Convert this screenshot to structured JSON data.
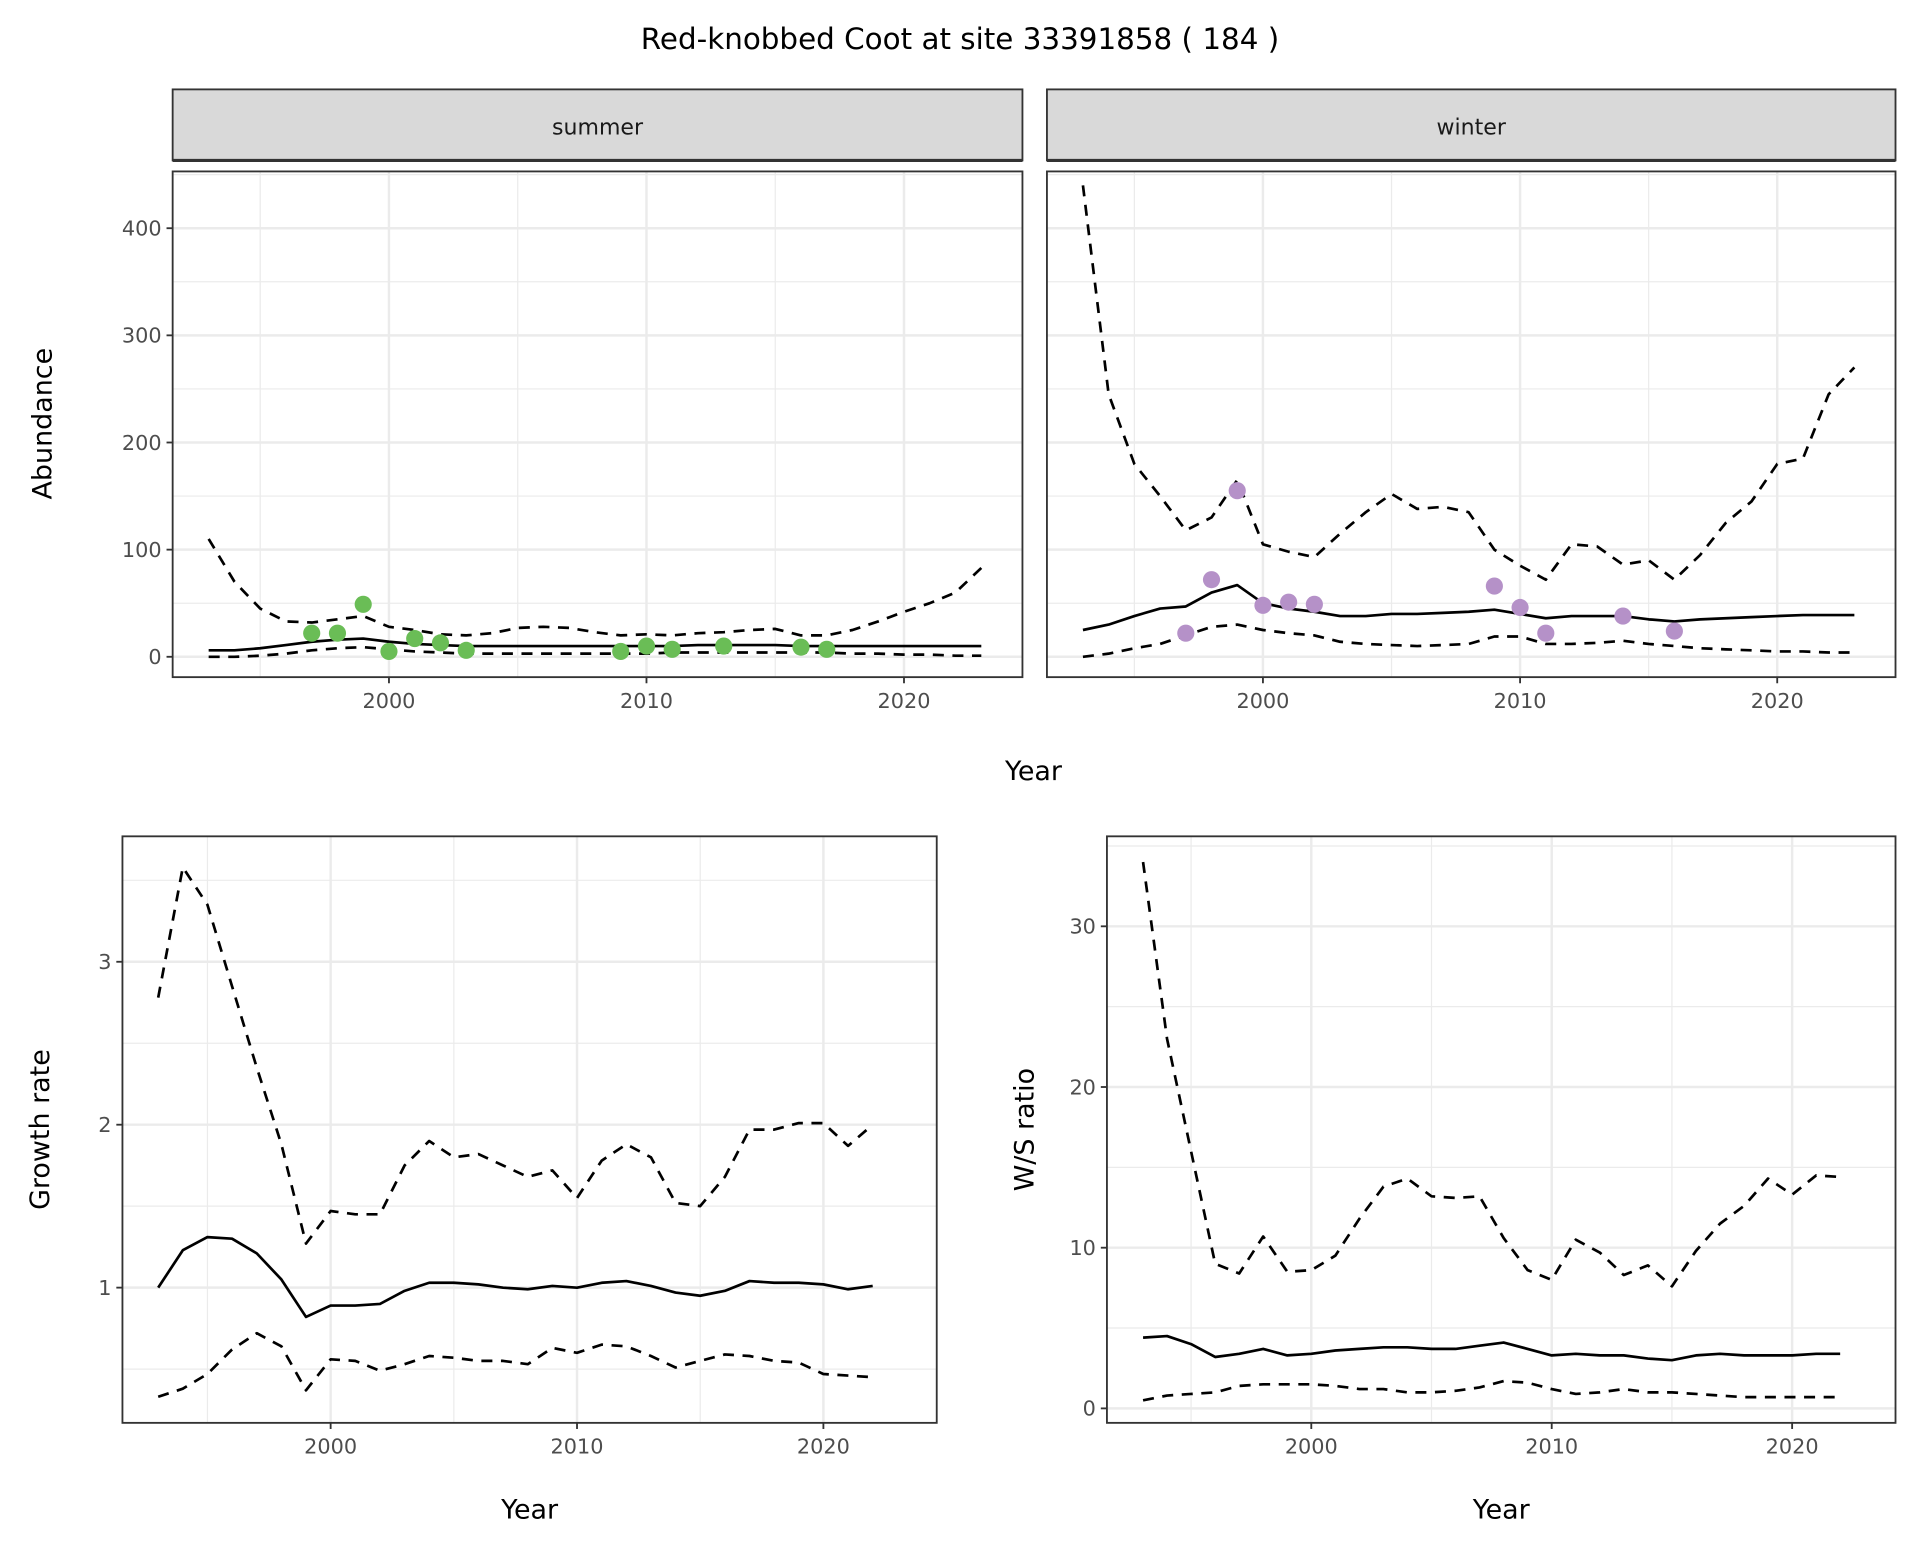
{
  "title": "Red-knobbed Coot at site 33391858 ( 184 )",
  "colors": {
    "summer_points": "#6abd56",
    "winter_points": "#b591c8",
    "strip_bg": "#d9d9d9",
    "grid": "#ebebeb"
  },
  "chart_data": [
    {
      "type": "line",
      "panel": "summer",
      "strip_label": "summer",
      "xlabel": "Year",
      "ylabel": "Abundance",
      "xlim": [
        1991.6,
        2024.6
      ],
      "ylim": [
        -19,
        453
      ],
      "x_ticks": [
        2000,
        2010,
        2020
      ],
      "y_ticks": [
        0,
        100,
        200,
        300,
        400
      ],
      "grid": true,
      "x": [
        1993,
        1994,
        1995,
        1996,
        1997,
        1998,
        1999,
        2000,
        2001,
        2002,
        2003,
        2004,
        2005,
        2006,
        2007,
        2008,
        2009,
        2010,
        2011,
        2012,
        2013,
        2014,
        2015,
        2016,
        2017,
        2018,
        2019,
        2020,
        2021,
        2022,
        2023
      ],
      "series": [
        {
          "style": "solid",
          "values": [
            6,
            6,
            8,
            11,
            14,
            16,
            17,
            14,
            12,
            11,
            10,
            10,
            10,
            10,
            10,
            10,
            10,
            10,
            10,
            11,
            11,
            11,
            11,
            10,
            10,
            10,
            10,
            10,
            10,
            10,
            10
          ]
        },
        {
          "style": "dashed",
          "values": [
            110,
            70,
            45,
            33,
            32,
            35,
            38,
            28,
            25,
            21,
            20,
            22,
            27,
            28,
            27,
            23,
            20,
            21,
            20,
            22,
            23,
            25,
            26,
            20,
            20,
            25,
            33,
            42,
            50,
            60,
            83
          ]
        },
        {
          "style": "dashed",
          "values": [
            0,
            0,
            1,
            3,
            6,
            8,
            9,
            7,
            5,
            4,
            3,
            3,
            3,
            3,
            3,
            3,
            3,
            3,
            4,
            4,
            4,
            4,
            4,
            4,
            4,
            3,
            3,
            2,
            2,
            1,
            1
          ]
        }
      ],
      "points": {
        "x": [
          1997,
          1998,
          1999,
          2000,
          2001,
          2002,
          2003,
          2009,
          2010,
          2011,
          2013,
          2016,
          2017
        ],
        "y": [
          22,
          22,
          49,
          5,
          17,
          13,
          6,
          5,
          10,
          7,
          10,
          9,
          7
        ]
      }
    },
    {
      "type": "line",
      "panel": "winter",
      "strip_label": "winter",
      "xlabel": "Year",
      "ylabel": "Abundance",
      "xlim": [
        1991.6,
        2024.6
      ],
      "ylim": [
        -19,
        453
      ],
      "x_ticks": [
        2000,
        2010,
        2020
      ],
      "y_ticks": [
        0,
        100,
        200,
        300,
        400
      ],
      "grid": true,
      "x": [
        1993,
        1994,
        1995,
        1996,
        1997,
        1998,
        1999,
        2000,
        2001,
        2002,
        2003,
        2004,
        2005,
        2006,
        2007,
        2008,
        2009,
        2010,
        2011,
        2012,
        2013,
        2014,
        2015,
        2016,
        2017,
        2018,
        2019,
        2020,
        2021,
        2022,
        2023
      ],
      "series": [
        {
          "style": "solid",
          "values": [
            25,
            30,
            38,
            45,
            47,
            60,
            67,
            50,
            45,
            42,
            38,
            38,
            40,
            40,
            41,
            42,
            44,
            40,
            36,
            38,
            38,
            38,
            35,
            33,
            35,
            36,
            37,
            38,
            39,
            39,
            39
          ]
        },
        {
          "style": "dashed",
          "values": [
            440,
            245,
            180,
            150,
            118,
            130,
            165,
            105,
            98,
            93,
            115,
            135,
            152,
            138,
            140,
            135,
            100,
            85,
            72,
            105,
            103,
            86,
            90,
            72,
            95,
            125,
            145,
            180,
            185,
            245,
            270
          ]
        },
        {
          "style": "dashed",
          "values": [
            0,
            3,
            8,
            12,
            20,
            28,
            30,
            25,
            22,
            20,
            14,
            12,
            11,
            10,
            11,
            12,
            19,
            19,
            12,
            12,
            13,
            15,
            12,
            10,
            8,
            7,
            6,
            5,
            5,
            4,
            4
          ]
        }
      ],
      "points": {
        "x": [
          1997,
          1998,
          1999,
          2000,
          2001,
          2002,
          2009,
          2010,
          2011,
          2014,
          2016
        ],
        "y": [
          22,
          72,
          155,
          48,
          51,
          49,
          66,
          46,
          22,
          38,
          24
        ]
      }
    },
    {
      "type": "line",
      "panel": "growth",
      "xlabel": "Year",
      "ylabel": "Growth rate",
      "xlim": [
        1991.55,
        2024.6
      ],
      "ylim": [
        0.17,
        3.77
      ],
      "x_ticks": [
        2000,
        2010,
        2020
      ],
      "y_ticks": [
        1,
        2,
        3
      ],
      "grid": true,
      "x": [
        1993,
        1994,
        1995,
        1996,
        1997,
        1998,
        1999,
        2000,
        2001,
        2002,
        2003,
        2004,
        2005,
        2006,
        2007,
        2008,
        2009,
        2010,
        2011,
        2012,
        2013,
        2014,
        2015,
        2016,
        2017,
        2018,
        2019,
        2020,
        2021,
        2022
      ],
      "series": [
        {
          "style": "solid",
          "values": [
            1.0,
            1.23,
            1.31,
            1.3,
            1.21,
            1.05,
            0.82,
            0.89,
            0.89,
            0.9,
            0.98,
            1.03,
            1.03,
            1.02,
            1.0,
            0.99,
            1.01,
            1.0,
            1.03,
            1.04,
            1.01,
            0.97,
            0.95,
            0.98,
            1.04,
            1.03,
            1.03,
            1.02,
            0.99,
            1.01
          ]
        },
        {
          "style": "dashed",
          "values": [
            2.78,
            3.58,
            3.35,
            2.85,
            2.35,
            1.88,
            1.27,
            1.47,
            1.45,
            1.45,
            1.75,
            1.9,
            1.8,
            1.82,
            1.75,
            1.68,
            1.72,
            1.55,
            1.78,
            1.88,
            1.8,
            1.52,
            1.5,
            1.68,
            1.97,
            1.97,
            2.01,
            2.01,
            1.87,
            2.0
          ]
        },
        {
          "style": "dashed",
          "values": [
            0.33,
            0.38,
            0.47,
            0.62,
            0.72,
            0.64,
            0.37,
            0.56,
            0.55,
            0.49,
            0.53,
            0.58,
            0.57,
            0.55,
            0.55,
            0.53,
            0.63,
            0.6,
            0.65,
            0.64,
            0.58,
            0.51,
            0.55,
            0.59,
            0.58,
            0.55,
            0.54,
            0.47,
            0.46,
            0.45
          ]
        }
      ]
    },
    {
      "type": "line",
      "panel": "ratio",
      "xlabel": "Year",
      "ylabel": "W/S ratio",
      "xlim": [
        1991.5,
        2024.3
      ],
      "ylim": [
        -0.9,
        35.6
      ],
      "x_ticks": [
        2000,
        2010,
        2020
      ],
      "y_ticks": [
        0,
        10,
        20,
        30
      ],
      "grid": true,
      "x": [
        1993,
        1994,
        1995,
        1996,
        1997,
        1998,
        1999,
        2000,
        2001,
        2002,
        2003,
        2004,
        2005,
        2006,
        2007,
        2008,
        2009,
        2010,
        2011,
        2012,
        2013,
        2014,
        2015,
        2016,
        2017,
        2018,
        2019,
        2020,
        2021,
        2022
      ],
      "series": [
        {
          "style": "solid",
          "values": [
            4.4,
            4.5,
            4.0,
            3.2,
            3.4,
            3.7,
            3.3,
            3.4,
            3.6,
            3.7,
            3.8,
            3.8,
            3.7,
            3.7,
            3.9,
            4.1,
            3.7,
            3.3,
            3.4,
            3.3,
            3.3,
            3.1,
            3.0,
            3.3,
            3.4,
            3.3,
            3.3,
            3.3,
            3.4,
            3.4
          ]
        },
        {
          "style": "dashed",
          "values": [
            34,
            23,
            16,
            9,
            8.4,
            10.7,
            8.5,
            8.6,
            9.5,
            11.8,
            13.8,
            14.3,
            13.2,
            13.1,
            13.2,
            10.6,
            8.6,
            8,
            10.5,
            9.7,
            8.3,
            8.9,
            7.6,
            9.8,
            11.5,
            12.6,
            14.3,
            13.3,
            14.5,
            14.4
          ]
        },
        {
          "style": "dashed",
          "values": [
            0.5,
            0.8,
            0.9,
            1.0,
            1.4,
            1.5,
            1.5,
            1.5,
            1.4,
            1.2,
            1.2,
            1.0,
            1.0,
            1.1,
            1.3,
            1.7,
            1.6,
            1.2,
            0.9,
            1.0,
            1.2,
            1.0,
            1.0,
            0.9,
            0.8,
            0.7,
            0.7,
            0.7,
            0.7,
            0.7
          ]
        }
      ]
    }
  ]
}
